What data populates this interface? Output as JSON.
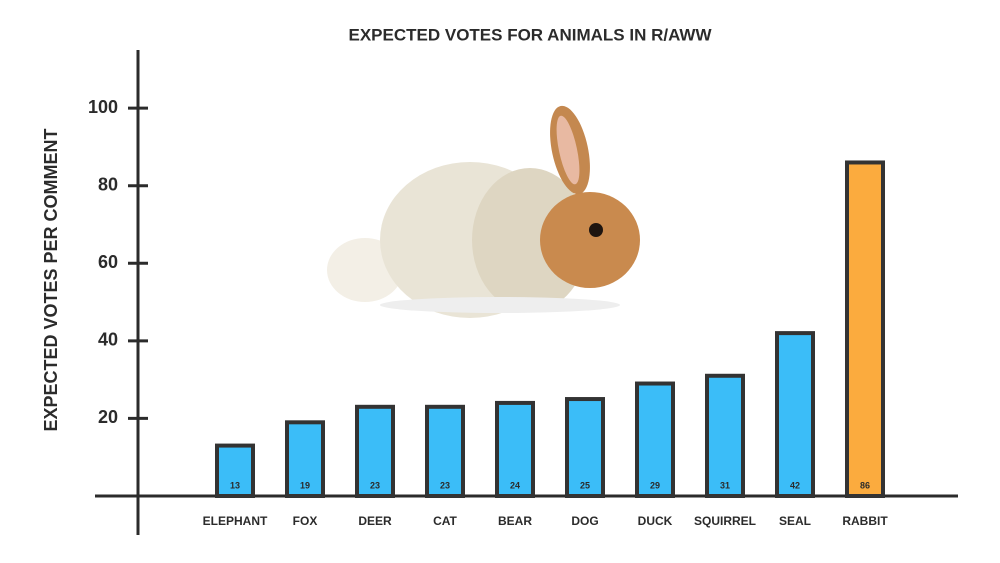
{
  "chart_data": {
    "type": "bar",
    "title": "EXPECTED VOTES FOR ANIMALS IN R/AWW",
    "y_label": "EXPECTED VOTES PER COMMENT",
    "categories": [
      "ELEPHANT",
      "FOX",
      "DEER",
      "CAT",
      "BEAR",
      "DOG",
      "DUCK",
      "SQUIRREL",
      "SEAL",
      "RABBIT"
    ],
    "values": [
      13,
      19,
      23,
      23,
      24,
      25,
      29,
      31,
      42,
      86
    ],
    "colors": [
      "#3bbdf8",
      "#3bbdf8",
      "#3bbdf8",
      "#3bbdf8",
      "#3bbdf8",
      "#3bbdf8",
      "#3bbdf8",
      "#3bbdf8",
      "#3bbdf8",
      "#fbab3e"
    ],
    "ylim": [
      0,
      115
    ],
    "yticks": [
      20,
      40,
      60,
      80,
      100
    ],
    "grid": false
  }
}
